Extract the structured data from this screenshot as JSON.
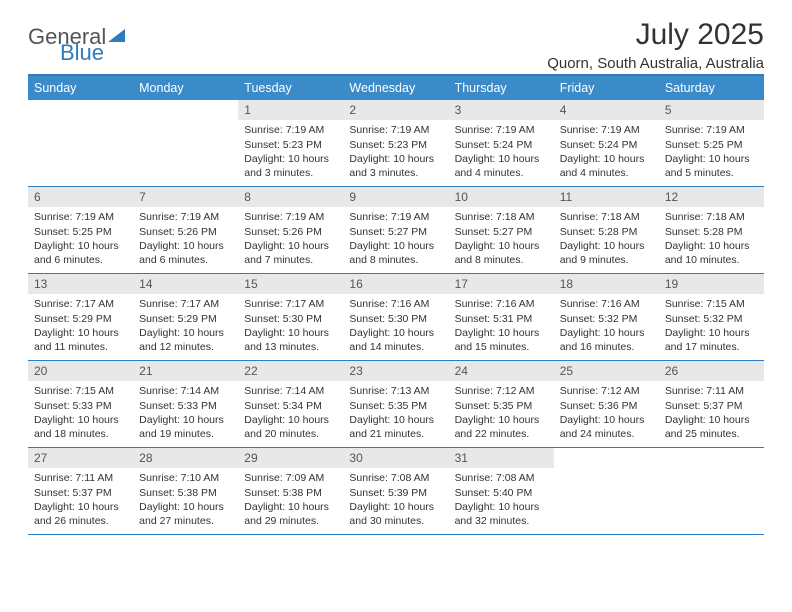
{
  "brand": {
    "part1": "General",
    "part2": "Blue"
  },
  "title": "July 2025",
  "location": "Quorn, South Australia, Australia",
  "colors": {
    "header_bg": "#3b8bc9",
    "header_border": "#2f7bbf",
    "daynum_bg": "#e8e8e8",
    "text": "#333333"
  },
  "days_of_week": [
    "Sunday",
    "Monday",
    "Tuesday",
    "Wednesday",
    "Thursday",
    "Friday",
    "Saturday"
  ],
  "weeks": [
    [
      null,
      null,
      {
        "n": "1",
        "sr": "7:19 AM",
        "ss": "5:23 PM",
        "dl": "10 hours and 3 minutes."
      },
      {
        "n": "2",
        "sr": "7:19 AM",
        "ss": "5:23 PM",
        "dl": "10 hours and 3 minutes."
      },
      {
        "n": "3",
        "sr": "7:19 AM",
        "ss": "5:24 PM",
        "dl": "10 hours and 4 minutes."
      },
      {
        "n": "4",
        "sr": "7:19 AM",
        "ss": "5:24 PM",
        "dl": "10 hours and 4 minutes."
      },
      {
        "n": "5",
        "sr": "7:19 AM",
        "ss": "5:25 PM",
        "dl": "10 hours and 5 minutes."
      }
    ],
    [
      {
        "n": "6",
        "sr": "7:19 AM",
        "ss": "5:25 PM",
        "dl": "10 hours and 6 minutes."
      },
      {
        "n": "7",
        "sr": "7:19 AM",
        "ss": "5:26 PM",
        "dl": "10 hours and 6 minutes."
      },
      {
        "n": "8",
        "sr": "7:19 AM",
        "ss": "5:26 PM",
        "dl": "10 hours and 7 minutes."
      },
      {
        "n": "9",
        "sr": "7:19 AM",
        "ss": "5:27 PM",
        "dl": "10 hours and 8 minutes."
      },
      {
        "n": "10",
        "sr": "7:18 AM",
        "ss": "5:27 PM",
        "dl": "10 hours and 8 minutes."
      },
      {
        "n": "11",
        "sr": "7:18 AM",
        "ss": "5:28 PM",
        "dl": "10 hours and 9 minutes."
      },
      {
        "n": "12",
        "sr": "7:18 AM",
        "ss": "5:28 PM",
        "dl": "10 hours and 10 minutes."
      }
    ],
    [
      {
        "n": "13",
        "sr": "7:17 AM",
        "ss": "5:29 PM",
        "dl": "10 hours and 11 minutes."
      },
      {
        "n": "14",
        "sr": "7:17 AM",
        "ss": "5:29 PM",
        "dl": "10 hours and 12 minutes."
      },
      {
        "n": "15",
        "sr": "7:17 AM",
        "ss": "5:30 PM",
        "dl": "10 hours and 13 minutes."
      },
      {
        "n": "16",
        "sr": "7:16 AM",
        "ss": "5:30 PM",
        "dl": "10 hours and 14 minutes."
      },
      {
        "n": "17",
        "sr": "7:16 AM",
        "ss": "5:31 PM",
        "dl": "10 hours and 15 minutes."
      },
      {
        "n": "18",
        "sr": "7:16 AM",
        "ss": "5:32 PM",
        "dl": "10 hours and 16 minutes."
      },
      {
        "n": "19",
        "sr": "7:15 AM",
        "ss": "5:32 PM",
        "dl": "10 hours and 17 minutes."
      }
    ],
    [
      {
        "n": "20",
        "sr": "7:15 AM",
        "ss": "5:33 PM",
        "dl": "10 hours and 18 minutes."
      },
      {
        "n": "21",
        "sr": "7:14 AM",
        "ss": "5:33 PM",
        "dl": "10 hours and 19 minutes."
      },
      {
        "n": "22",
        "sr": "7:14 AM",
        "ss": "5:34 PM",
        "dl": "10 hours and 20 minutes."
      },
      {
        "n": "23",
        "sr": "7:13 AM",
        "ss": "5:35 PM",
        "dl": "10 hours and 21 minutes."
      },
      {
        "n": "24",
        "sr": "7:12 AM",
        "ss": "5:35 PM",
        "dl": "10 hours and 22 minutes."
      },
      {
        "n": "25",
        "sr": "7:12 AM",
        "ss": "5:36 PM",
        "dl": "10 hours and 24 minutes."
      },
      {
        "n": "26",
        "sr": "7:11 AM",
        "ss": "5:37 PM",
        "dl": "10 hours and 25 minutes."
      }
    ],
    [
      {
        "n": "27",
        "sr": "7:11 AM",
        "ss": "5:37 PM",
        "dl": "10 hours and 26 minutes."
      },
      {
        "n": "28",
        "sr": "7:10 AM",
        "ss": "5:38 PM",
        "dl": "10 hours and 27 minutes."
      },
      {
        "n": "29",
        "sr": "7:09 AM",
        "ss": "5:38 PM",
        "dl": "10 hours and 29 minutes."
      },
      {
        "n": "30",
        "sr": "7:08 AM",
        "ss": "5:39 PM",
        "dl": "10 hours and 30 minutes."
      },
      {
        "n": "31",
        "sr": "7:08 AM",
        "ss": "5:40 PM",
        "dl": "10 hours and 32 minutes."
      },
      null,
      null
    ]
  ],
  "labels": {
    "sunrise": "Sunrise:",
    "sunset": "Sunset:",
    "daylight": "Daylight:"
  }
}
